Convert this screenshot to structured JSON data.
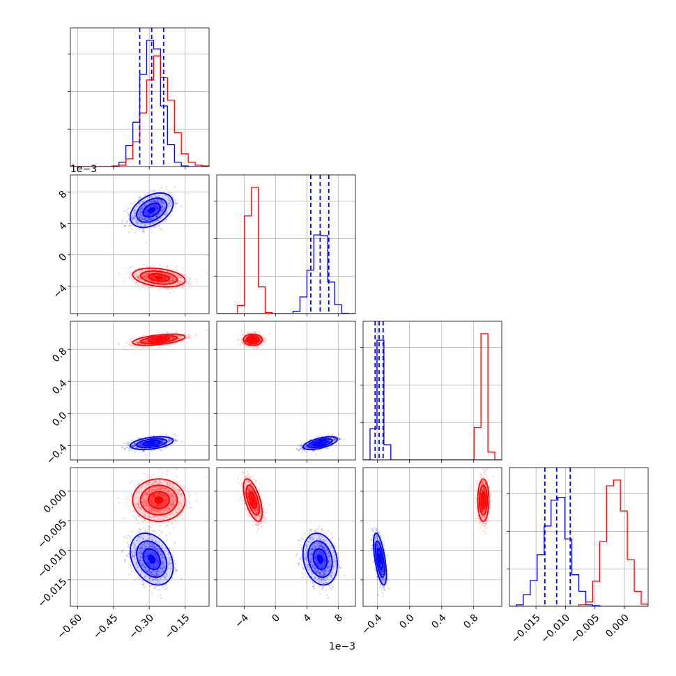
{
  "chart_data": {
    "type": "corner",
    "colors": {
      "series_a": "#0000ff",
      "series_b": "#ff0000",
      "grid": "#b0b0b0"
    },
    "series": [
      {
        "color": "#0000ff",
        "means": [
          -0.29,
          0.0057,
          -0.37,
          -0.0115
        ],
        "sigmas": [
          0.045,
          0.0011,
          0.04,
          0.0022
        ],
        "quantiles": [
          [
            -0.34,
            -0.29,
            -0.24
          ],
          [
            0.0045,
            0.0057,
            0.0068
          ],
          [
            -0.43,
            -0.38,
            -0.33
          ],
          [
            -0.0135,
            -0.0115,
            -0.0092
          ]
        ]
      },
      {
        "color": "#ff0000",
        "means": [
          -0.26,
          -0.0029,
          0.92,
          -0.0015
        ],
        "sigmas": [
          0.055,
          0.0006,
          0.035,
          0.0018
        ],
        "quantiles": null
      }
    ],
    "correlations": {
      "series_a": {
        "0-1": 0.4,
        "0-2": 0.4,
        "0-3": -0.3,
        "1-2": 0.6,
        "1-3": -0.2,
        "2-3": -0.6
      },
      "series_b": {
        "0-1": -0.3,
        "0-2": 0.5,
        "0-3": 0.0,
        "1-2": 0.0,
        "1-3": -0.6,
        "2-3": 0.0
      }
    },
    "axes": [
      {
        "range": [
          -0.63,
          -0.05
        ],
        "ticks": [
          -0.6,
          -0.45,
          -0.3,
          -0.15
        ],
        "tick_labels": [
          "−0.60",
          "−0.45",
          "−0.30",
          "−0.15"
        ],
        "exponent_label": ""
      },
      {
        "range": [
          -0.0075,
          0.0102
        ],
        "ticks": [
          -0.004,
          0.0,
          0.004,
          0.008
        ],
        "tick_labels": [
          "−4",
          "0",
          "4",
          "8"
        ],
        "exponent_label": "1e−3"
      },
      {
        "range": [
          -0.58,
          1.15
        ],
        "ticks": [
          -0.4,
          0.0,
          0.4,
          0.8
        ],
        "tick_labels": [
          "−0.4",
          "0.0",
          "0.4",
          "0.8"
        ],
        "exponent_label": ""
      },
      {
        "range": [
          -0.0195,
          0.004
        ],
        "ticks": [
          -0.015,
          -0.01,
          -0.005,
          0.0
        ],
        "tick_labels": [
          "−0.015",
          "−0.010",
          "−0.005",
          "0.000"
        ],
        "exponent_label": ""
      }
    ],
    "grid": true,
    "diagonal": "histogram",
    "off_diagonal": "scatter_with_contours"
  }
}
